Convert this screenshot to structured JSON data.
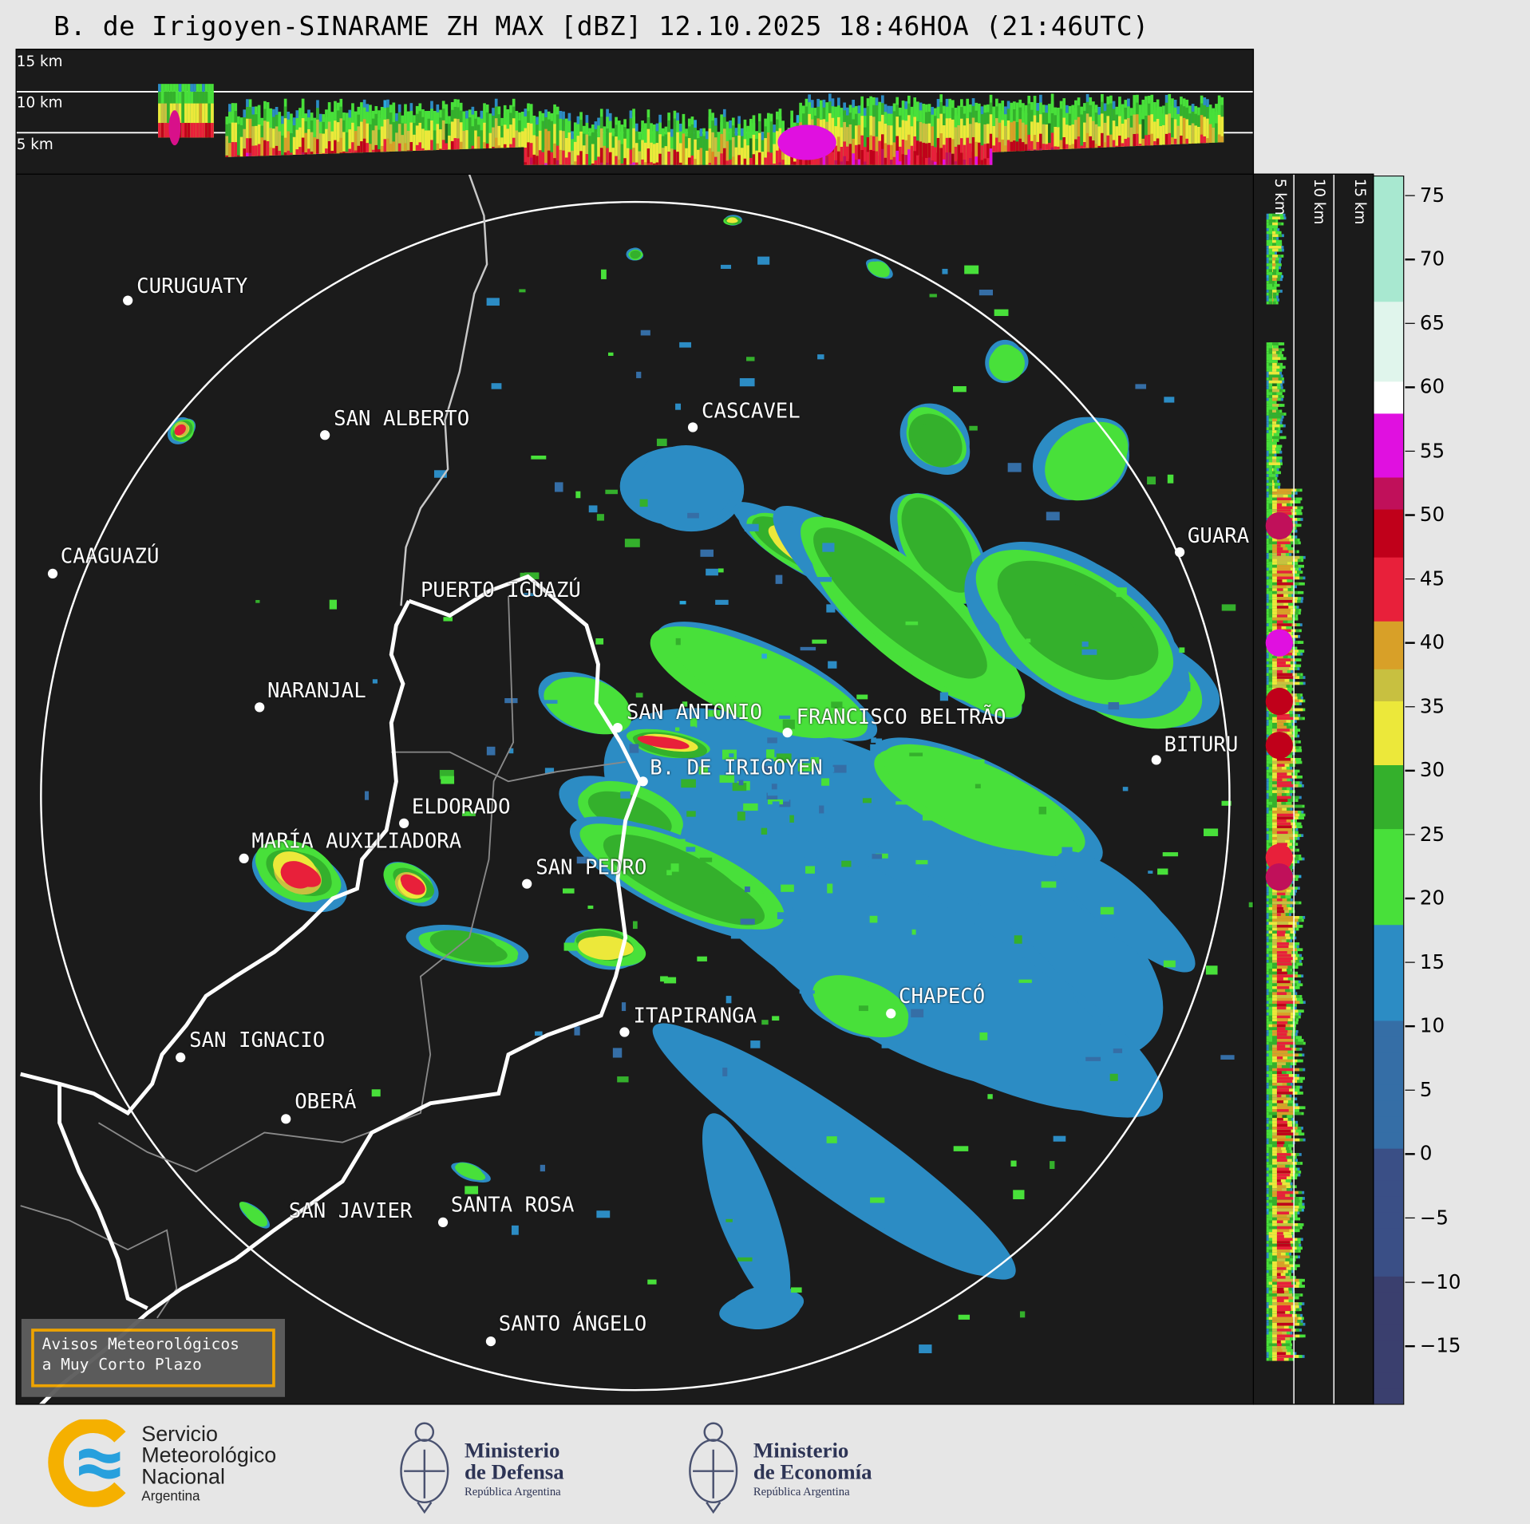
{
  "title": "B. de Irigoyen-SINARAME ZH MAX [dBZ] 12.10.2025 18:46HOA (21:46UTC)",
  "top_panel": {
    "height_labels": [
      "15 km",
      "10 km",
      "5 km"
    ]
  },
  "right_panel": {
    "height_labels": [
      "5 km",
      "10 km",
      "15 km"
    ]
  },
  "colorbar": {
    "unit": "dBZ",
    "range": [
      -19.5,
      76.5
    ],
    "ticks": [
      "75",
      "70",
      "65",
      "60",
      "55",
      "50",
      "45",
      "40",
      "35",
      "30",
      "25",
      "20",
      "15",
      "10",
      "5",
      "0",
      "−5",
      "−10",
      "−15"
    ],
    "tick_values": [
      75,
      70,
      65,
      60,
      55,
      50,
      45,
      40,
      35,
      30,
      25,
      20,
      15,
      10,
      5,
      0,
      -5,
      -10,
      -15
    ],
    "colors": {
      "low": "#3a3f6e",
      "blue": "#2aa8dc",
      "green": "#48e03a",
      "dark_green": "#1e6e1e",
      "yellow": "#e8e83a",
      "orange": "#e08a20",
      "red": "#d0102a",
      "magenta": "#e010e0",
      "purple": "#9a009a",
      "white": "#ffffff",
      "mint": "#88dcbc"
    }
  },
  "cities": [
    "CURUGUATY",
    "SAN ALBERTO",
    "CAAGUAZÚ",
    "CASCAVEL",
    "GUARA",
    "PUERTO IGUAZÚ",
    "NARANJAL",
    "SAN ANTONIO",
    "FRANCISCO BELTRÃO",
    "BITURU",
    "B. DE IRIGOYEN",
    "ELDORADO",
    "MARÍA AUXILIADORA",
    "SAN PEDRO",
    "ITAPIRANGA",
    "CHAPECÓ",
    "SAN IGNACIO",
    "OBERÁ",
    "SAN JAVIER",
    "SANTA ROSA",
    "SANTO ÁNGELO"
  ],
  "warning_box": {
    "line1": "Avisos Meteorológicos",
    "line2": "a Muy Corto Plazo",
    "accent": "#f5a800"
  },
  "footer": {
    "smn": {
      "line1": "Servicio",
      "line2": "Meteorológico",
      "line3": "Nacional",
      "line4": "Argentina"
    },
    "defensa": {
      "line1": "Ministerio",
      "line2": "de Defensa",
      "line3": "República Argentina"
    },
    "economia": {
      "line1": "Ministerio",
      "line2": "de Economía",
      "line3": "República Argentina"
    }
  }
}
